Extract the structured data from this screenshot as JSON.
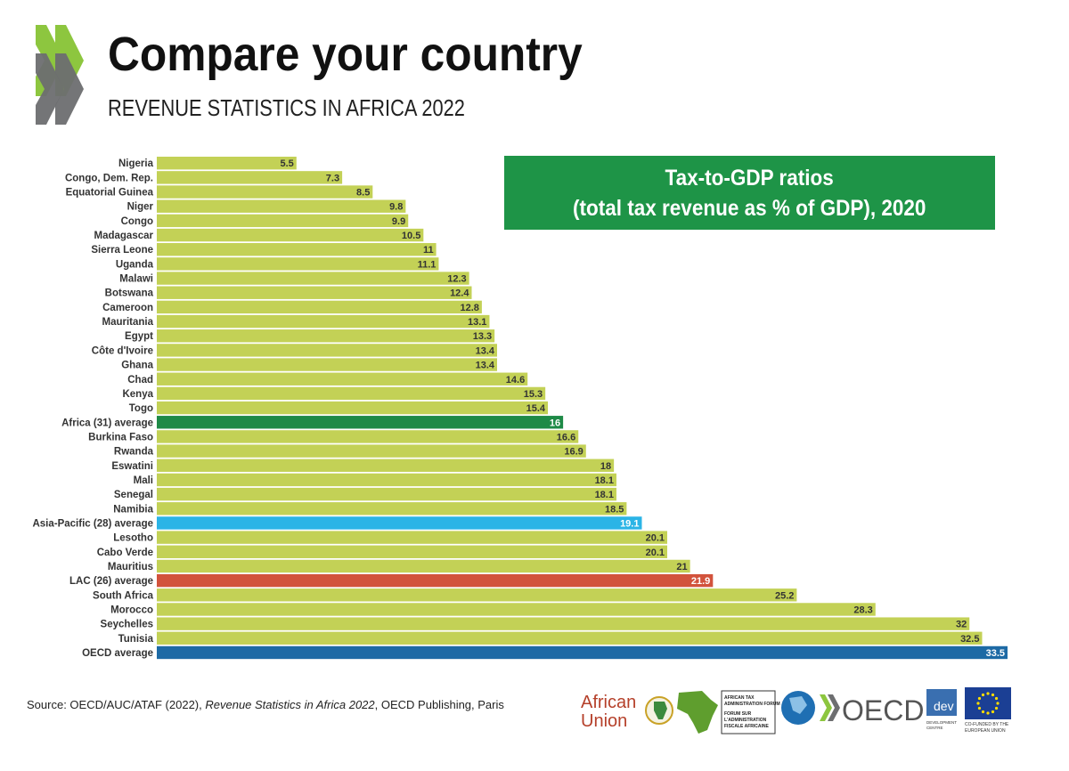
{
  "header": {
    "title": "Compare your country",
    "subtitle": "REVENUE STATISTICS IN AFRICA 2022"
  },
  "chart_title": {
    "line1": "Tax-to-GDP ratios",
    "line2": "(total tax revenue as % of GDP), 2020"
  },
  "source": {
    "prefix": "Source: OECD/AUC/ATAF (2022), ",
    "publication": "Revenue Statistics in Africa 2022",
    "suffix": ", OECD Publishing, Paris"
  },
  "logos": {
    "african_union": [
      "African",
      "Union"
    ],
    "ataf": [
      "AFRICAN TAX",
      "ADMINISTRATION FORUM",
      "FORUM SUR",
      "L'ADMINISTRATION",
      "FISCALE AFRICAINE"
    ],
    "oecd": "OECD",
    "dev": "dev",
    "dev_caption": [
      "DEVELOPMENT",
      "CENTRE"
    ],
    "eu_caption": [
      "CO-FUNDED BY THE",
      "EUROPEAN UNION"
    ]
  },
  "colors": {
    "country_bar": "#c3d156",
    "africa_average": "#1e8a47",
    "asia_pacific_average": "#2bb4e6",
    "lac_average": "#d2533c",
    "oecd_average": "#1d6aa5",
    "title_box": "#1e9447",
    "chevron_green": "#8dc63f",
    "chevron_grey": "#6d6e70"
  },
  "chart_data": {
    "type": "bar",
    "orientation": "horizontal",
    "title": "Tax-to-GDP ratios (total tax revenue as % of GDP), 2020",
    "xlabel": "",
    "ylabel": "",
    "xlim": [
      0,
      33.5
    ],
    "grid": false,
    "legend": "none",
    "categories": [
      "Nigeria",
      "Congo, Dem. Rep.",
      "Equatorial Guinea",
      "Niger",
      "Congo",
      "Madagascar",
      "Sierra Leone",
      "Uganda",
      "Malawi",
      "Botswana",
      "Cameroon",
      "Mauritania",
      "Egypt",
      "Côte d'Ivoire",
      "Ghana",
      "Chad",
      "Kenya",
      "Togo",
      "Africa (31) average",
      "Burkina Faso",
      "Rwanda",
      "Eswatini",
      "Mali",
      "Senegal",
      "Namibia",
      "Asia-Pacific (28) average",
      "Lesotho",
      "Cabo Verde",
      "Mauritius",
      "LAC (26) average",
      "South Africa",
      "Morocco",
      "Seychelles",
      "Tunisia",
      "OECD average"
    ],
    "values": [
      5.5,
      7.3,
      8.5,
      9.8,
      9.9,
      10.5,
      11,
      11.1,
      12.3,
      12.4,
      12.8,
      13.1,
      13.3,
      13.4,
      13.4,
      14.6,
      15.3,
      15.4,
      16,
      16.6,
      16.9,
      18,
      18.1,
      18.1,
      18.5,
      19.1,
      20.1,
      20.1,
      21,
      21.9,
      25.2,
      28.3,
      32,
      32.5,
      33.5
    ],
    "value_labels": [
      "5.5",
      "7.3",
      "8.5",
      "9.8",
      "9.9",
      "10.5",
      "11",
      "11.1",
      "12.3",
      "12.4",
      "12.8",
      "13.1",
      "13.3",
      "13.4",
      "13.4",
      "14.6",
      "15.3",
      "15.4",
      "16",
      "16.6",
      "16.9",
      "18",
      "18.1",
      "18.1",
      "18.5",
      "19.1",
      "20.1",
      "20.1",
      "21",
      "21.9",
      "25.2",
      "28.3",
      "32",
      "32.5",
      "33.5"
    ],
    "highlight": {
      "Africa (31) average": "africa_average",
      "Asia-Pacific (28) average": "asia_pacific_average",
      "LAC (26) average": "lac_average",
      "OECD average": "oecd_average"
    }
  }
}
